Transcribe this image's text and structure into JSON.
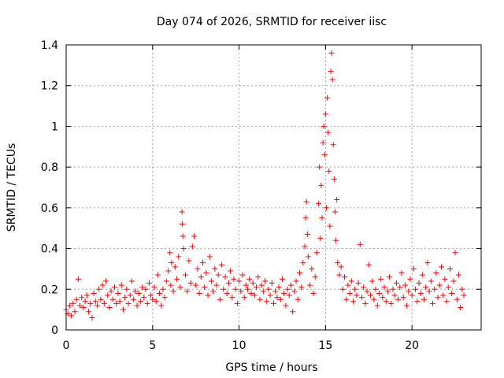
{
  "chart_data": {
    "type": "scatter",
    "title": "Day 074 of 2026, SRMTID for receiver iisc",
    "xlabel": "GPS time / hours",
    "ylabel": "SRMTID / TECUs",
    "xlim": [
      0,
      24
    ],
    "ylim": [
      0,
      1.4
    ],
    "xticks": [
      0,
      5,
      10,
      15,
      20
    ],
    "xtick_labels": [
      "0",
      "5",
      "10",
      "15",
      "20"
    ],
    "yticks": [
      0,
      0.2,
      0.4,
      0.6,
      0.8,
      1.0,
      1.2,
      1.4
    ],
    "ytick_labels": [
      "0",
      "0.2",
      "0.4",
      "0.6",
      "0.8",
      "1",
      "1.2",
      "1.4"
    ],
    "grid": true,
    "marker": "plus",
    "color": "#ff0000",
    "series": [
      {
        "name": "SRMTID",
        "points": [
          [
            0.0,
            0.1
          ],
          [
            0.1,
            0.08
          ],
          [
            0.2,
            0.12
          ],
          [
            0.3,
            0.07
          ],
          [
            0.4,
            0.13
          ],
          [
            0.5,
            0.09
          ],
          [
            0.6,
            0.15
          ],
          [
            0.7,
            0.25
          ],
          [
            0.8,
            0.12
          ],
          [
            0.9,
            0.16
          ],
          [
            1.0,
            0.11
          ],
          [
            1.1,
            0.14
          ],
          [
            1.2,
            0.17
          ],
          [
            1.3,
            0.09
          ],
          [
            1.4,
            0.13
          ],
          [
            1.5,
            0.06
          ],
          [
            1.6,
            0.18
          ],
          [
            1.7,
            0.14
          ],
          [
            1.8,
            0.12
          ],
          [
            1.9,
            0.2
          ],
          [
            2.0,
            0.15
          ],
          [
            2.1,
            0.22
          ],
          [
            2.2,
            0.13
          ],
          [
            2.3,
            0.24
          ],
          [
            2.4,
            0.17
          ],
          [
            2.5,
            0.11
          ],
          [
            2.6,
            0.19
          ],
          [
            2.7,
            0.15
          ],
          [
            2.8,
            0.21
          ],
          [
            2.9,
            0.13
          ],
          [
            3.0,
            0.18
          ],
          [
            3.1,
            0.14
          ],
          [
            3.2,
            0.22
          ],
          [
            3.3,
            0.1
          ],
          [
            3.4,
            0.16
          ],
          [
            3.5,
            0.2
          ],
          [
            3.6,
            0.13
          ],
          [
            3.7,
            0.17
          ],
          [
            3.8,
            0.24
          ],
          [
            3.9,
            0.15
          ],
          [
            4.0,
            0.19
          ],
          [
            4.1,
            0.12
          ],
          [
            4.2,
            0.18
          ],
          [
            4.3,
            0.14
          ],
          [
            4.4,
            0.21
          ],
          [
            4.5,
            0.16
          ],
          [
            4.6,
            0.2
          ],
          [
            4.7,
            0.13
          ],
          [
            4.8,
            0.23
          ],
          [
            4.9,
            0.17
          ],
          [
            5.0,
            0.15
          ],
          [
            5.1,
            0.21
          ],
          [
            5.2,
            0.14
          ],
          [
            5.3,
            0.27
          ],
          [
            5.4,
            0.18
          ],
          [
            5.5,
            0.12
          ],
          [
            5.6,
            0.2
          ],
          [
            5.7,
            0.16
          ],
          [
            5.8,
            0.24
          ],
          [
            5.9,
            0.29
          ],
          [
            6.0,
            0.38
          ],
          [
            6.05,
            0.22
          ],
          [
            6.1,
            0.33
          ],
          [
            6.2,
            0.19
          ],
          [
            6.3,
            0.31
          ],
          [
            6.4,
            0.25
          ],
          [
            6.5,
            0.36
          ],
          [
            6.6,
            0.21
          ],
          [
            6.7,
            0.58
          ],
          [
            6.72,
            0.52
          ],
          [
            6.75,
            0.46
          ],
          [
            6.8,
            0.4
          ],
          [
            6.9,
            0.27
          ],
          [
            7.0,
            0.19
          ],
          [
            7.1,
            0.34
          ],
          [
            7.2,
            0.23
          ],
          [
            7.3,
            0.41
          ],
          [
            7.4,
            0.46
          ],
          [
            7.5,
            0.22
          ],
          [
            7.6,
            0.3
          ],
          [
            7.7,
            0.18
          ],
          [
            7.8,
            0.26
          ],
          [
            7.9,
            0.33
          ],
          [
            8.0,
            0.21
          ],
          [
            8.1,
            0.28
          ],
          [
            8.2,
            0.17
          ],
          [
            8.3,
            0.36
          ],
          [
            8.4,
            0.24
          ],
          [
            8.5,
            0.19
          ],
          [
            8.6,
            0.3
          ],
          [
            8.7,
            0.22
          ],
          [
            8.8,
            0.27
          ],
          [
            8.9,
            0.15
          ],
          [
            9.0,
            0.32
          ],
          [
            9.1,
            0.2
          ],
          [
            9.2,
            0.26
          ],
          [
            9.3,
            0.18
          ],
          [
            9.4,
            0.23
          ],
          [
            9.5,
            0.29
          ],
          [
            9.6,
            0.16
          ],
          [
            9.7,
            0.25
          ],
          [
            9.8,
            0.2
          ],
          [
            9.9,
            0.13
          ],
          [
            10.0,
            0.24
          ],
          [
            10.1,
            0.19
          ],
          [
            10.2,
            0.27
          ],
          [
            10.3,
            0.16
          ],
          [
            10.4,
            0.22
          ],
          [
            10.5,
            0.2
          ],
          [
            10.6,
            0.25
          ],
          [
            10.7,
            0.18
          ],
          [
            10.8,
            0.23
          ],
          [
            10.9,
            0.17
          ],
          [
            11.0,
            0.21
          ],
          [
            11.1,
            0.26
          ],
          [
            11.2,
            0.15
          ],
          [
            11.3,
            0.22
          ],
          [
            11.4,
            0.19
          ],
          [
            11.5,
            0.24
          ],
          [
            11.6,
            0.14
          ],
          [
            11.7,
            0.2
          ],
          [
            11.8,
            0.17
          ],
          [
            11.9,
            0.23
          ],
          [
            12.0,
            0.13
          ],
          [
            12.1,
            0.19
          ],
          [
            12.2,
            0.16
          ],
          [
            12.3,
            0.21
          ],
          [
            12.4,
            0.15
          ],
          [
            12.5,
            0.25
          ],
          [
            12.6,
            0.18
          ],
          [
            12.7,
            0.12
          ],
          [
            12.8,
            0.2
          ],
          [
            12.9,
            0.17
          ],
          [
            13.0,
            0.22
          ],
          [
            13.1,
            0.09
          ],
          [
            13.2,
            0.19
          ],
          [
            13.3,
            0.24
          ],
          [
            13.4,
            0.15
          ],
          [
            13.5,
            0.28
          ],
          [
            13.6,
            0.21
          ],
          [
            13.7,
            0.33
          ],
          [
            13.8,
            0.41
          ],
          [
            13.85,
            0.55
          ],
          [
            13.9,
            0.63
          ],
          [
            13.95,
            0.47
          ],
          [
            14.0,
            0.36
          ],
          [
            14.1,
            0.22
          ],
          [
            14.2,
            0.3
          ],
          [
            14.3,
            0.18
          ],
          [
            14.4,
            0.26
          ],
          [
            14.5,
            0.38
          ],
          [
            14.6,
            0.62
          ],
          [
            14.65,
            0.8
          ],
          [
            14.7,
            0.45
          ],
          [
            14.75,
            0.71
          ],
          [
            14.8,
            0.55
          ],
          [
            14.85,
            0.92
          ],
          [
            14.9,
            1.0
          ],
          [
            14.95,
            0.86
          ],
          [
            15.0,
            1.06
          ],
          [
            15.05,
            0.6
          ],
          [
            15.1,
            1.14
          ],
          [
            15.15,
            0.97
          ],
          [
            15.2,
            0.78
          ],
          [
            15.25,
            0.51
          ],
          [
            15.3,
            1.27
          ],
          [
            15.35,
            1.36
          ],
          [
            15.4,
            1.23
          ],
          [
            15.45,
            0.91
          ],
          [
            15.5,
            0.74
          ],
          [
            15.55,
            0.58
          ],
          [
            15.6,
            0.44
          ],
          [
            15.65,
            0.64
          ],
          [
            15.7,
            0.33
          ],
          [
            15.8,
            0.27
          ],
          [
            15.9,
            0.31
          ],
          [
            16.0,
            0.2
          ],
          [
            16.1,
            0.26
          ],
          [
            16.2,
            0.15
          ],
          [
            16.3,
            0.22
          ],
          [
            16.4,
            0.18
          ],
          [
            16.5,
            0.24
          ],
          [
            16.6,
            0.14
          ],
          [
            16.7,
            0.2
          ],
          [
            16.8,
            0.17
          ],
          [
            16.9,
            0.23
          ],
          [
            17.0,
            0.42
          ],
          [
            17.1,
            0.16
          ],
          [
            17.2,
            0.21
          ],
          [
            17.3,
            0.13
          ],
          [
            17.4,
            0.19
          ],
          [
            17.5,
            0.32
          ],
          [
            17.6,
            0.17
          ],
          [
            17.7,
            0.24
          ],
          [
            17.8,
            0.15
          ],
          [
            17.9,
            0.2
          ],
          [
            18.0,
            0.12
          ],
          [
            18.1,
            0.18
          ],
          [
            18.2,
            0.25
          ],
          [
            18.3,
            0.16
          ],
          [
            18.4,
            0.21
          ],
          [
            18.5,
            0.14
          ],
          [
            18.6,
            0.19
          ],
          [
            18.7,
            0.26
          ],
          [
            18.8,
            0.13
          ],
          [
            18.9,
            0.2
          ],
          [
            19.0,
            0.17
          ],
          [
            19.1,
            0.23
          ],
          [
            19.2,
            0.15
          ],
          [
            19.3,
            0.21
          ],
          [
            19.4,
            0.28
          ],
          [
            19.5,
            0.16
          ],
          [
            19.6,
            0.22
          ],
          [
            19.7,
            0.12
          ],
          [
            19.8,
            0.19
          ],
          [
            19.9,
            0.25
          ],
          [
            20.0,
            0.17
          ],
          [
            20.1,
            0.3
          ],
          [
            20.2,
            0.2
          ],
          [
            20.3,
            0.14
          ],
          [
            20.4,
            0.23
          ],
          [
            20.5,
            0.18
          ],
          [
            20.6,
            0.27
          ],
          [
            20.7,
            0.15
          ],
          [
            20.8,
            0.21
          ],
          [
            20.9,
            0.33
          ],
          [
            21.0,
            0.19
          ],
          [
            21.1,
            0.24
          ],
          [
            21.2,
            0.13
          ],
          [
            21.3,
            0.2
          ],
          [
            21.4,
            0.28
          ],
          [
            21.5,
            0.16
          ],
          [
            21.6,
            0.22
          ],
          [
            21.7,
            0.31
          ],
          [
            21.8,
            0.17
          ],
          [
            21.9,
            0.25
          ],
          [
            22.0,
            0.14
          ],
          [
            22.1,
            0.21
          ],
          [
            22.2,
            0.3
          ],
          [
            22.3,
            0.18
          ],
          [
            22.4,
            0.24
          ],
          [
            22.5,
            0.38
          ],
          [
            22.6,
            0.15
          ],
          [
            22.7,
            0.27
          ],
          [
            22.8,
            0.11
          ],
          [
            22.9,
            0.2
          ],
          [
            23.0,
            0.17
          ]
        ]
      }
    ]
  }
}
